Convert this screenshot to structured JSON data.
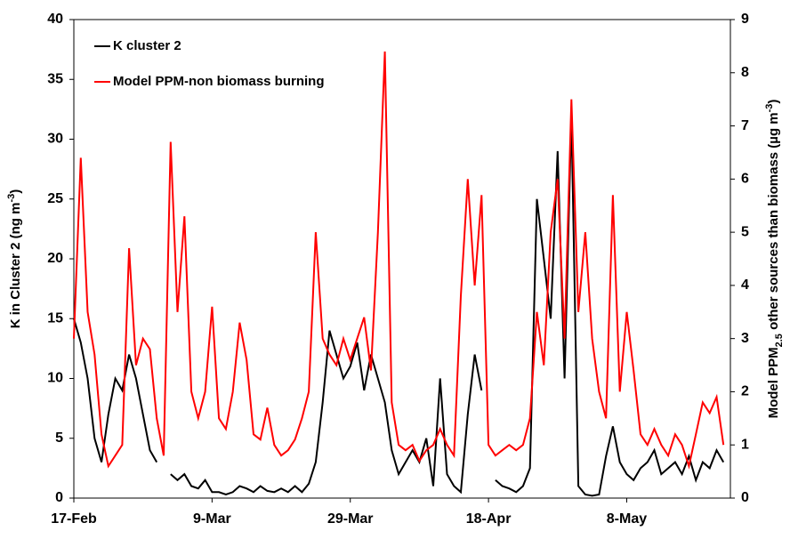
{
  "chart_data": {
    "type": "line",
    "legend": {
      "position": "upper left"
    },
    "ylabel": {
      "parts": [
        "K in Cluster 2 (ng  m",
        "-3",
        ")"
      ]
    },
    "y2label": {
      "parts": [
        "Model PPM",
        "2.5",
        " other sources than biomass (µg m",
        "-3",
        ")"
      ]
    },
    "x": [
      0,
      1,
      2,
      3,
      4,
      5,
      6,
      7,
      8,
      9,
      10,
      11,
      12,
      13,
      14,
      15,
      16,
      17,
      18,
      19,
      20,
      21,
      22,
      23,
      24,
      25,
      26,
      27,
      28,
      29,
      30,
      31,
      32,
      33,
      34,
      35,
      36,
      37,
      38,
      39,
      40,
      41,
      42,
      43,
      44,
      45,
      46,
      47,
      48,
      49,
      50,
      51,
      52,
      53,
      54,
      55,
      56,
      57,
      58,
      59,
      60,
      61,
      62,
      63,
      64,
      65,
      66,
      67,
      68,
      69,
      70,
      71,
      72,
      73,
      74,
      75,
      76,
      77,
      78,
      79,
      80,
      81,
      82,
      83,
      84,
      85,
      86,
      87,
      88,
      89,
      90,
      91,
      92,
      93,
      94
    ],
    "xlim": [
      0,
      95
    ],
    "xticks": [
      {
        "value": 0,
        "label": "17-Feb"
      },
      {
        "value": 20,
        "label": "9-Mar"
      },
      {
        "value": 40,
        "label": "29-Mar"
      },
      {
        "value": 60,
        "label": "18-Apr"
      },
      {
        "value": 80,
        "label": "8-May"
      }
    ],
    "ylim": [
      0,
      40
    ],
    "yticks": [
      0,
      5,
      10,
      15,
      20,
      25,
      30,
      35,
      40
    ],
    "y2lim": [
      0,
      9
    ],
    "y2ticks": [
      0,
      1,
      2,
      3,
      4,
      5,
      6,
      7,
      8,
      9
    ],
    "series": [
      {
        "name": "K cluster 2",
        "color": "#000000",
        "values": [
          15,
          13,
          10,
          5,
          3,
          7,
          10,
          9,
          12,
          10,
          7,
          4,
          3,
          null,
          2,
          1.5,
          2,
          1,
          0.8,
          1.5,
          0.5,
          0.5,
          0.3,
          0.5,
          1,
          0.8,
          0.5,
          1,
          0.6,
          0.5,
          0.8,
          0.5,
          1,
          0.5,
          1.2,
          3,
          8,
          14,
          12,
          10,
          11,
          13,
          9,
          12,
          10,
          8,
          4,
          2,
          3,
          4,
          3,
          5,
          1,
          10,
          2,
          1,
          0.5,
          7,
          12,
          9,
          null,
          1.5,
          1,
          0.8,
          0.5,
          1,
          2.5,
          25,
          20,
          15,
          29,
          10,
          32,
          1,
          0.3,
          0.2,
          0.3,
          3.5,
          6,
          3,
          2,
          1.5,
          2.5,
          3,
          4,
          2,
          2.5,
          3,
          2,
          3.5,
          1.5,
          3,
          2.5,
          4,
          3
        ]
      },
      {
        "name": "Model PPM-non biomass burning",
        "color": "#ff0000",
        "axis": "y2",
        "values": [
          3,
          6.4,
          3.5,
          2.7,
          1.2,
          0.6,
          0.8,
          1,
          4.7,
          2.5,
          3,
          2.8,
          1.5,
          0.8,
          6.7,
          3.5,
          5.3,
          2,
          1.5,
          2,
          3.6,
          1.5,
          1.3,
          2,
          3.3,
          2.6,
          1.2,
          1.1,
          1.7,
          1,
          0.8,
          0.9,
          1.1,
          1.5,
          2,
          5,
          3,
          2.7,
          2.5,
          3,
          2.6,
          3,
          3.4,
          2.4,
          5,
          8.4,
          1.8,
          1,
          0.9,
          1,
          0.7,
          0.9,
          1,
          1.3,
          1,
          0.8,
          3.8,
          6,
          4,
          5.7,
          1,
          0.8,
          0.9,
          1,
          0.9,
          1,
          1.5,
          3.5,
          2.5,
          5,
          6,
          3,
          7.5,
          3.5,
          5,
          3,
          2,
          1.5,
          5.7,
          2,
          3.5,
          2.4,
          1.2,
          1,
          1.3,
          1,
          0.8,
          1.2,
          1,
          0.6,
          1.2,
          1.8,
          1.6,
          1.9,
          1
        ]
      }
    ]
  }
}
